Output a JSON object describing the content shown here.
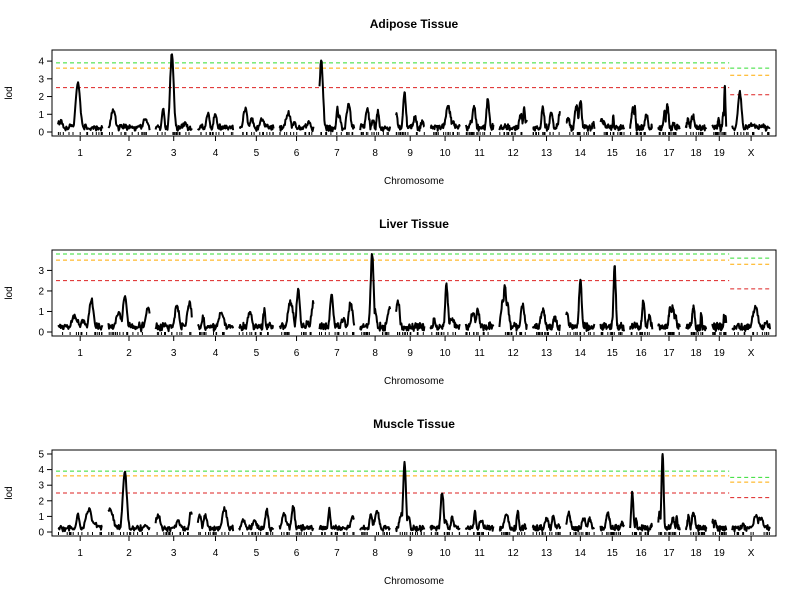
{
  "colors": {
    "threshold_green": "#33dd33",
    "threshold_orange": "#ffaa00",
    "threshold_red": "#dd2222",
    "curve": "#000000"
  },
  "chart_data": [
    {
      "type": "line",
      "title": "Adipose Tissue",
      "xlabel": "Chromosome",
      "ylabel": "lod",
      "ylim": [
        0,
        4.4
      ],
      "yticks": [
        0,
        1,
        2,
        3,
        4
      ],
      "chromosomes": [
        "1",
        "2",
        "3",
        "4",
        "5",
        "6",
        "7",
        "8",
        "9",
        "10",
        "11",
        "12",
        "13",
        "14",
        "15",
        "16",
        "17",
        "18",
        "19",
        "X"
      ],
      "thresholds_autosome": {
        "green": 3.9,
        "orange": 3.6,
        "red": 2.5
      },
      "thresholds_x": {
        "green": 3.6,
        "orange": 3.2,
        "red": 2.1
      },
      "peaks": [
        {
          "chr": "1",
          "p": 0.45,
          "lod": 2.8
        },
        {
          "chr": "3",
          "p": 0.45,
          "lod": 4.4
        },
        {
          "chr": "7",
          "p": 0.05,
          "lod": 4.1
        },
        {
          "chr": "9",
          "p": 0.3,
          "lod": 2.3
        },
        {
          "chr": "11",
          "p": 0.8,
          "lod": 1.9
        },
        {
          "chr": "14",
          "p": 0.5,
          "lod": 1.8
        },
        {
          "chr": "19",
          "p": 0.9,
          "lod": 2.5
        },
        {
          "chr": "X",
          "p": 0.2,
          "lod": 2.2
        }
      ]
    },
    {
      "type": "line",
      "title": "Liver Tissue",
      "xlabel": "Chromosome",
      "ylabel": "lod",
      "ylim": [
        0,
        3.8
      ],
      "yticks": [
        0,
        1,
        2,
        3
      ],
      "chromosomes": [
        "1",
        "2",
        "3",
        "4",
        "5",
        "6",
        "7",
        "8",
        "9",
        "10",
        "11",
        "12",
        "13",
        "14",
        "15",
        "16",
        "17",
        "18",
        "19",
        "X"
      ],
      "thresholds_autosome": {
        "green": 3.8,
        "orange": 3.5,
        "red": 2.5
      },
      "thresholds_x": {
        "green": 3.6,
        "orange": 3.3,
        "red": 2.1
      },
      "peaks": [
        {
          "chr": "1",
          "p": 0.75,
          "lod": 1.6
        },
        {
          "chr": "2",
          "p": 0.4,
          "lod": 1.8
        },
        {
          "chr": "6",
          "p": 0.55,
          "lod": 2.1
        },
        {
          "chr": "7",
          "p": 0.35,
          "lod": 1.8
        },
        {
          "chr": "8",
          "p": 0.4,
          "lod": 3.8
        },
        {
          "chr": "10",
          "p": 0.55,
          "lod": 2.3
        },
        {
          "chr": "12",
          "p": 0.2,
          "lod": 2.3
        },
        {
          "chr": "14",
          "p": 0.5,
          "lod": 2.5
        },
        {
          "chr": "15",
          "p": 0.6,
          "lod": 3.2
        }
      ]
    },
    {
      "type": "line",
      "title": "Muscle Tissue",
      "xlabel": "Chromosome",
      "ylabel": "lod",
      "ylim": [
        0,
        5
      ],
      "yticks": [
        0,
        1,
        2,
        3,
        4,
        5
      ],
      "chromosomes": [
        "1",
        "2",
        "3",
        "4",
        "5",
        "6",
        "7",
        "8",
        "9",
        "10",
        "11",
        "12",
        "13",
        "14",
        "15",
        "16",
        "17",
        "18",
        "19",
        "X"
      ],
      "thresholds_autosome": {
        "green": 3.9,
        "orange": 3.6,
        "red": 2.5
      },
      "thresholds_x": {
        "green": 3.5,
        "orange": 3.2,
        "red": 2.2
      },
      "peaks": [
        {
          "chr": "2",
          "p": 0.4,
          "lod": 3.8
        },
        {
          "chr": "6",
          "p": 0.4,
          "lod": 1.6
        },
        {
          "chr": "9",
          "p": 0.3,
          "lod": 4.4
        },
        {
          "chr": "10",
          "p": 0.4,
          "lod": 2.6
        },
        {
          "chr": "16",
          "p": 0.1,
          "lod": 2.6
        },
        {
          "chr": "17",
          "p": 0.2,
          "lod": 5.0
        }
      ]
    }
  ]
}
